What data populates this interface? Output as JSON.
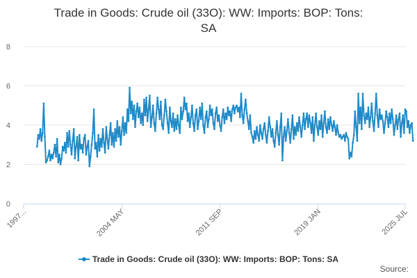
{
  "title_lines": [
    "Trade in Goods: Crude oil (33O): WW: Imports: BOP: Tons:",
    "SA"
  ],
  "source_label": "Source:",
  "colors": {
    "series": "#1f8ac8",
    "grid": "#e6e6e6",
    "axis": "#ccd6eb",
    "text": "#666666"
  },
  "chart_data": {
    "type": "line",
    "title": "Trade in Goods: Crude oil (33O): WW: Imports: BOP: Tons: SA",
    "xlabel": "",
    "ylabel": "",
    "ylim": [
      0,
      8
    ],
    "yticks": [
      0,
      2,
      4,
      6,
      8
    ],
    "xlim": [
      "1997-01",
      "2025-07"
    ],
    "xtick_labels": [
      {
        "date": "1997-01",
        "label": "1997..."
      },
      {
        "date": "2004-05",
        "label": "2004 MAY"
      },
      {
        "date": "2011-09",
        "label": "2011 SEP"
      },
      {
        "date": "2019-01",
        "label": "2019 JAN"
      },
      {
        "date": "2025-07",
        "label": "2025 JUL"
      }
    ],
    "grid": true,
    "legend_position": "bottom",
    "series": [
      {
        "name": "Trade in Goods: Crude oil (33O): WW: Imports: BOP: Tons: SA",
        "start": "1998-01",
        "frequency": "monthly",
        "values": [
          2.9,
          3.5,
          3.3,
          3.8,
          3.2,
          3.6,
          5.1,
          3.4,
          2.1,
          2.2,
          2.4,
          2.7,
          2.2,
          2.5,
          2.3,
          2.6,
          3.0,
          2.4,
          3.3,
          2.1,
          2.5,
          2.0,
          2.3,
          2.9,
          2.7,
          3.1,
          2.6,
          3.6,
          2.9,
          3.7,
          3.0,
          2.5,
          3.2,
          3.8,
          2.3,
          2.9,
          3.4,
          2.2,
          3.5,
          2.8,
          3.0,
          2.6,
          3.3,
          3.5,
          2.5,
          2.9,
          3.2,
          1.9,
          2.4,
          3.0,
          3.6,
          4.8,
          2.8,
          3.1,
          2.4,
          3.5,
          2.7,
          3.3,
          2.9,
          3.8,
          3.1,
          2.6,
          3.9,
          3.3,
          2.8,
          3.5,
          4.1,
          3.0,
          3.6,
          2.9,
          3.8,
          3.2,
          4.2,
          3.4,
          3.9,
          3.0,
          3.7,
          4.4,
          3.5,
          4.1,
          3.6,
          4.8,
          4.2,
          5.9,
          4.6,
          5.2,
          4.3,
          5.0,
          3.9,
          4.7,
          5.1,
          4.4,
          4.9,
          4.1,
          4.6,
          4.0,
          5.3,
          4.5,
          5.4,
          4.2,
          4.8,
          5.5,
          3.9,
          4.4,
          5.0,
          4.1,
          3.7,
          4.6,
          5.4,
          4.8,
          4.3,
          5.2,
          4.0,
          3.8,
          4.5,
          5.3,
          4.7,
          4.1,
          3.6,
          4.9,
          4.2,
          3.9,
          4.6,
          3.7,
          4.3,
          3.8,
          4.5,
          4.0,
          3.6,
          4.9,
          4.3,
          4.7,
          5.4,
          4.8,
          5.1,
          4.2,
          4.6,
          3.9,
          4.4,
          5.0,
          4.1,
          3.7,
          4.5,
          4.8,
          3.8,
          4.2,
          4.9,
          4.3,
          5.1,
          4.0,
          3.6,
          4.4,
          4.7,
          3.9,
          4.3,
          5.0,
          4.5,
          4.8,
          4.1,
          3.8,
          4.6,
          4.9,
          4.2,
          4.5,
          4.0,
          3.7,
          4.4,
          4.8,
          4.1,
          4.6,
          4.3,
          4.9,
          4.5,
          4.7,
          4.2,
          4.8,
          5.0,
          4.6,
          4.9,
          5.0,
          4.7,
          4.9,
          4.4,
          5.6,
          4.5,
          4.1,
          4.8,
          5.3,
          4.6,
          4.2,
          3.8,
          4.5,
          3.6,
          3.4,
          3.1,
          3.7,
          3.3,
          3.9,
          3.5,
          3.2,
          4.0,
          3.6,
          3.3,
          3.8,
          4.1,
          3.5,
          3.1,
          3.7,
          4.4,
          3.9,
          3.4,
          3.8,
          3.2,
          2.9,
          3.6,
          4.2,
          3.5,
          3.0,
          3.9,
          4.6,
          2.2,
          3.4,
          3.9,
          3.2,
          3.7,
          4.3,
          3.6,
          3.1,
          3.8,
          4.5,
          3.3,
          3.9,
          3.5,
          4.1,
          3.7,
          4.4,
          3.9,
          3.4,
          4.0,
          4.6,
          3.8,
          4.3,
          4.6,
          3.9,
          4.5,
          4.1,
          3.6,
          4.4,
          3.2,
          4.0,
          4.6,
          3.9,
          3.5,
          4.2,
          3.8,
          4.5,
          3.4,
          4.1,
          4.7,
          3.9,
          3.6,
          4.3,
          3.8,
          4.4,
          4.0,
          3.7,
          4.2,
          3.9,
          3.5,
          4.0,
          3.6,
          3.4,
          3.5,
          3.3,
          3.4,
          3.5,
          3.2,
          3.6,
          3.4,
          3.3,
          2.3,
          2.6,
          2.4,
          3.1,
          3.5,
          4.7,
          3.9,
          3.2,
          5.6,
          4.1,
          4.9,
          3.8,
          5.6,
          4.5,
          4.1,
          4.6,
          4.3,
          4.9,
          3.9,
          4.4,
          5.1,
          4.2,
          3.7,
          4.6,
          5.6,
          4.5,
          3.9,
          4.8,
          4.3,
          4.5,
          4.2,
          3.6,
          4.1,
          4.7,
          4.4,
          3.9,
          4.6,
          4.1,
          4.8,
          4.3,
          3.5,
          4.0,
          4.5,
          3.8,
          4.3,
          4.6,
          3.4,
          4.1,
          4.5,
          3.6,
          4.8,
          4.7,
          3.9,
          4.2,
          3.6,
          4.0,
          4.1,
          3.2
        ]
      }
    ]
  }
}
